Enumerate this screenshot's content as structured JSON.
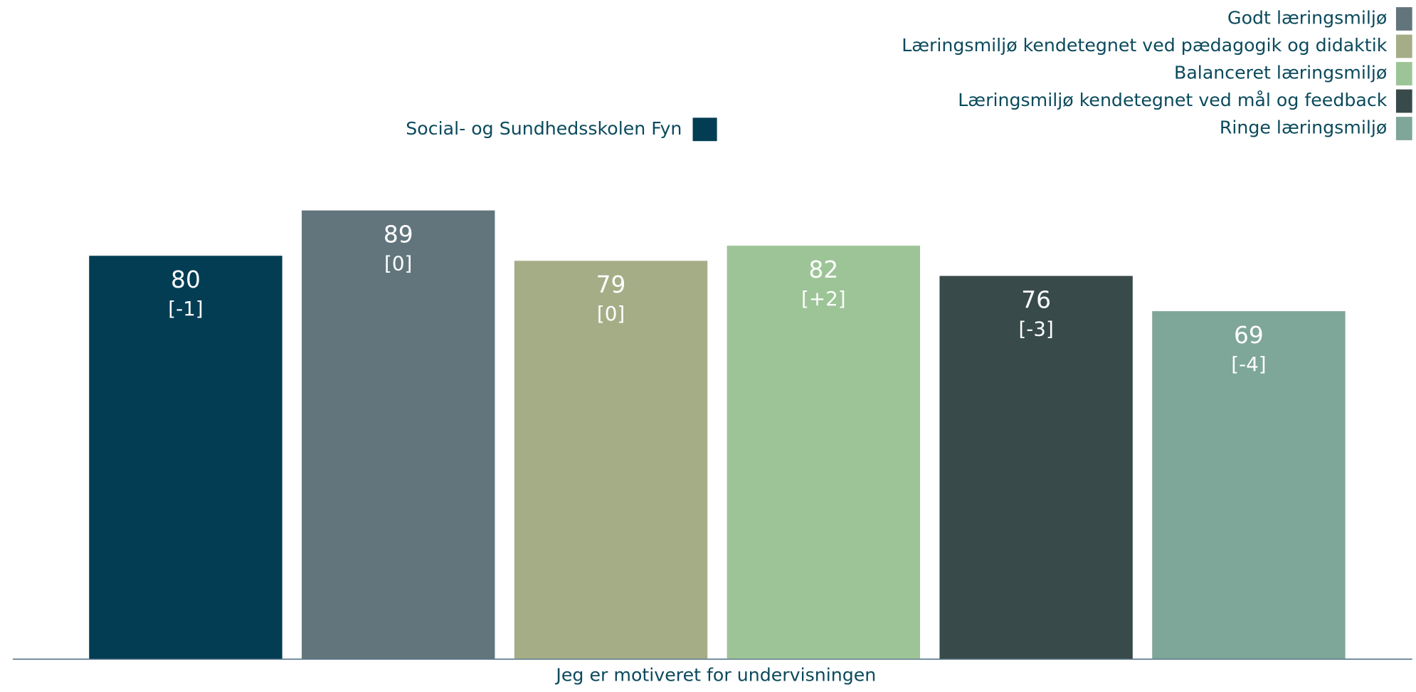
{
  "chart_data": {
    "type": "bar",
    "categories": [
      "Jeg er motiveret for undervisningen"
    ],
    "series": [
      {
        "name": "Social- og Sundhedsskolen Fyn",
        "color": "#023d54",
        "values": [
          80
        ],
        "change_label": "[-1]"
      },
      {
        "name": "Godt læringsmiljø",
        "color": "#62757c",
        "values": [
          89
        ],
        "change_label": "[0]"
      },
      {
        "name": "Læringsmiljø kendetegnet ved pædagogik og didaktik",
        "color": "#a5ad87",
        "values": [
          79
        ],
        "change_label": "[0]"
      },
      {
        "name": "Balanceret læringsmiljø",
        "color": "#9dc497",
        "values": [
          82
        ],
        "change_label": "[+2]"
      },
      {
        "name": "Læringsmiljø kendetegnet ved mål og feedback",
        "color": "#384a4a",
        "values": [
          76
        ],
        "change_label": "[-3]"
      },
      {
        "name": "Ringe læringsmiljø",
        "color": "#7ea699",
        "values": [
          69
        ],
        "change_label": "[-4]"
      }
    ]
  }
}
